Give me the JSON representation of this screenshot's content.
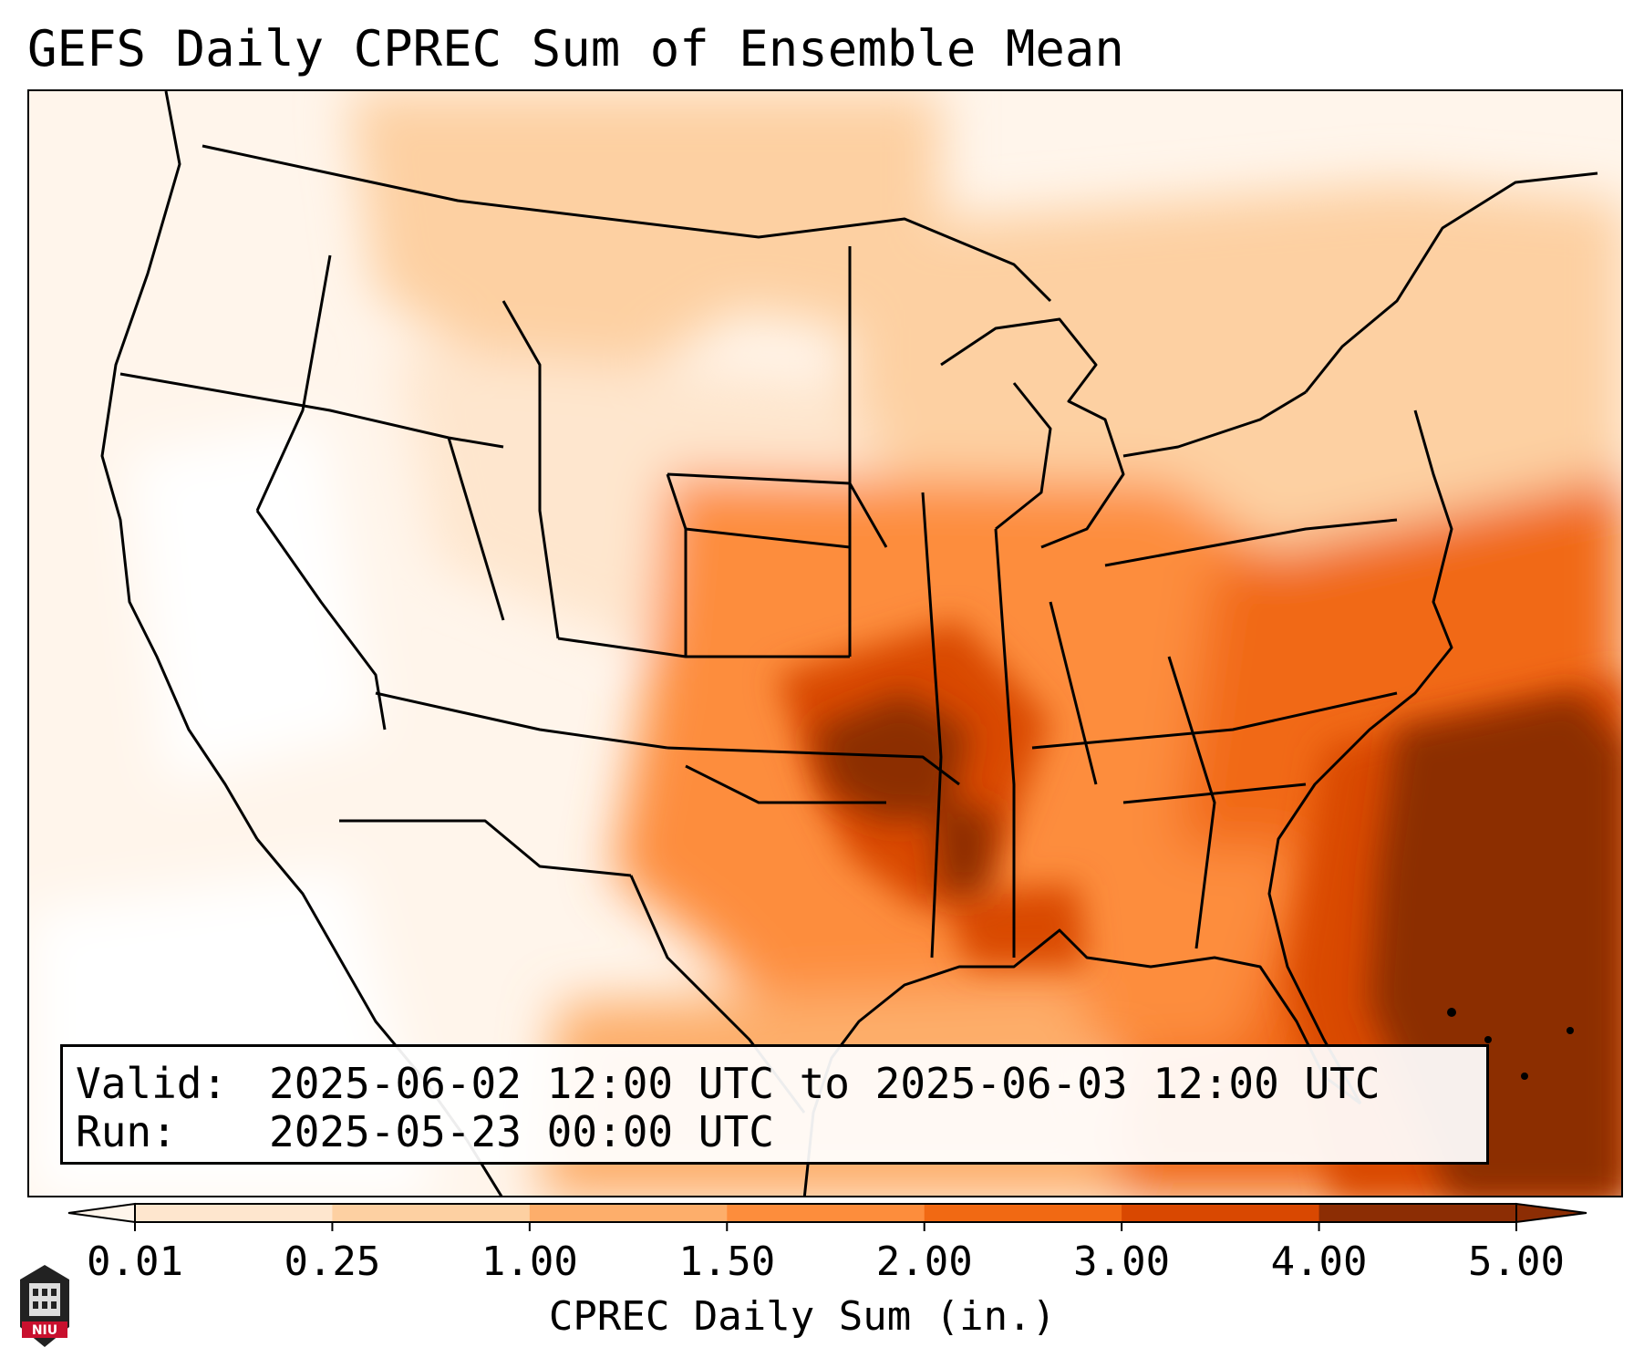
{
  "title": "GEFS Daily CPREC Sum of Ensemble Mean",
  "info": {
    "valid_label": "Valid:",
    "valid_value": "2025-06-02 12:00 UTC to 2025-06-03 12:00 UTC",
    "run_label": "Run:",
    "run_value": "2025-05-23 00:00 UTC"
  },
  "colorbar": {
    "title": "CPREC Daily Sum (in.)",
    "ticks": [
      "0.01",
      "0.25",
      "1.00",
      "1.50",
      "2.00",
      "3.00",
      "4.00",
      "5.00"
    ],
    "colors": [
      "#fff5eb",
      "#fee6ce",
      "#fdd0a2",
      "#fdae6b",
      "#fd8d3c",
      "#f16913",
      "#d94801",
      "#8c2d04"
    ]
  },
  "logo": {
    "text": "NIU",
    "color": "#c8102e"
  }
}
